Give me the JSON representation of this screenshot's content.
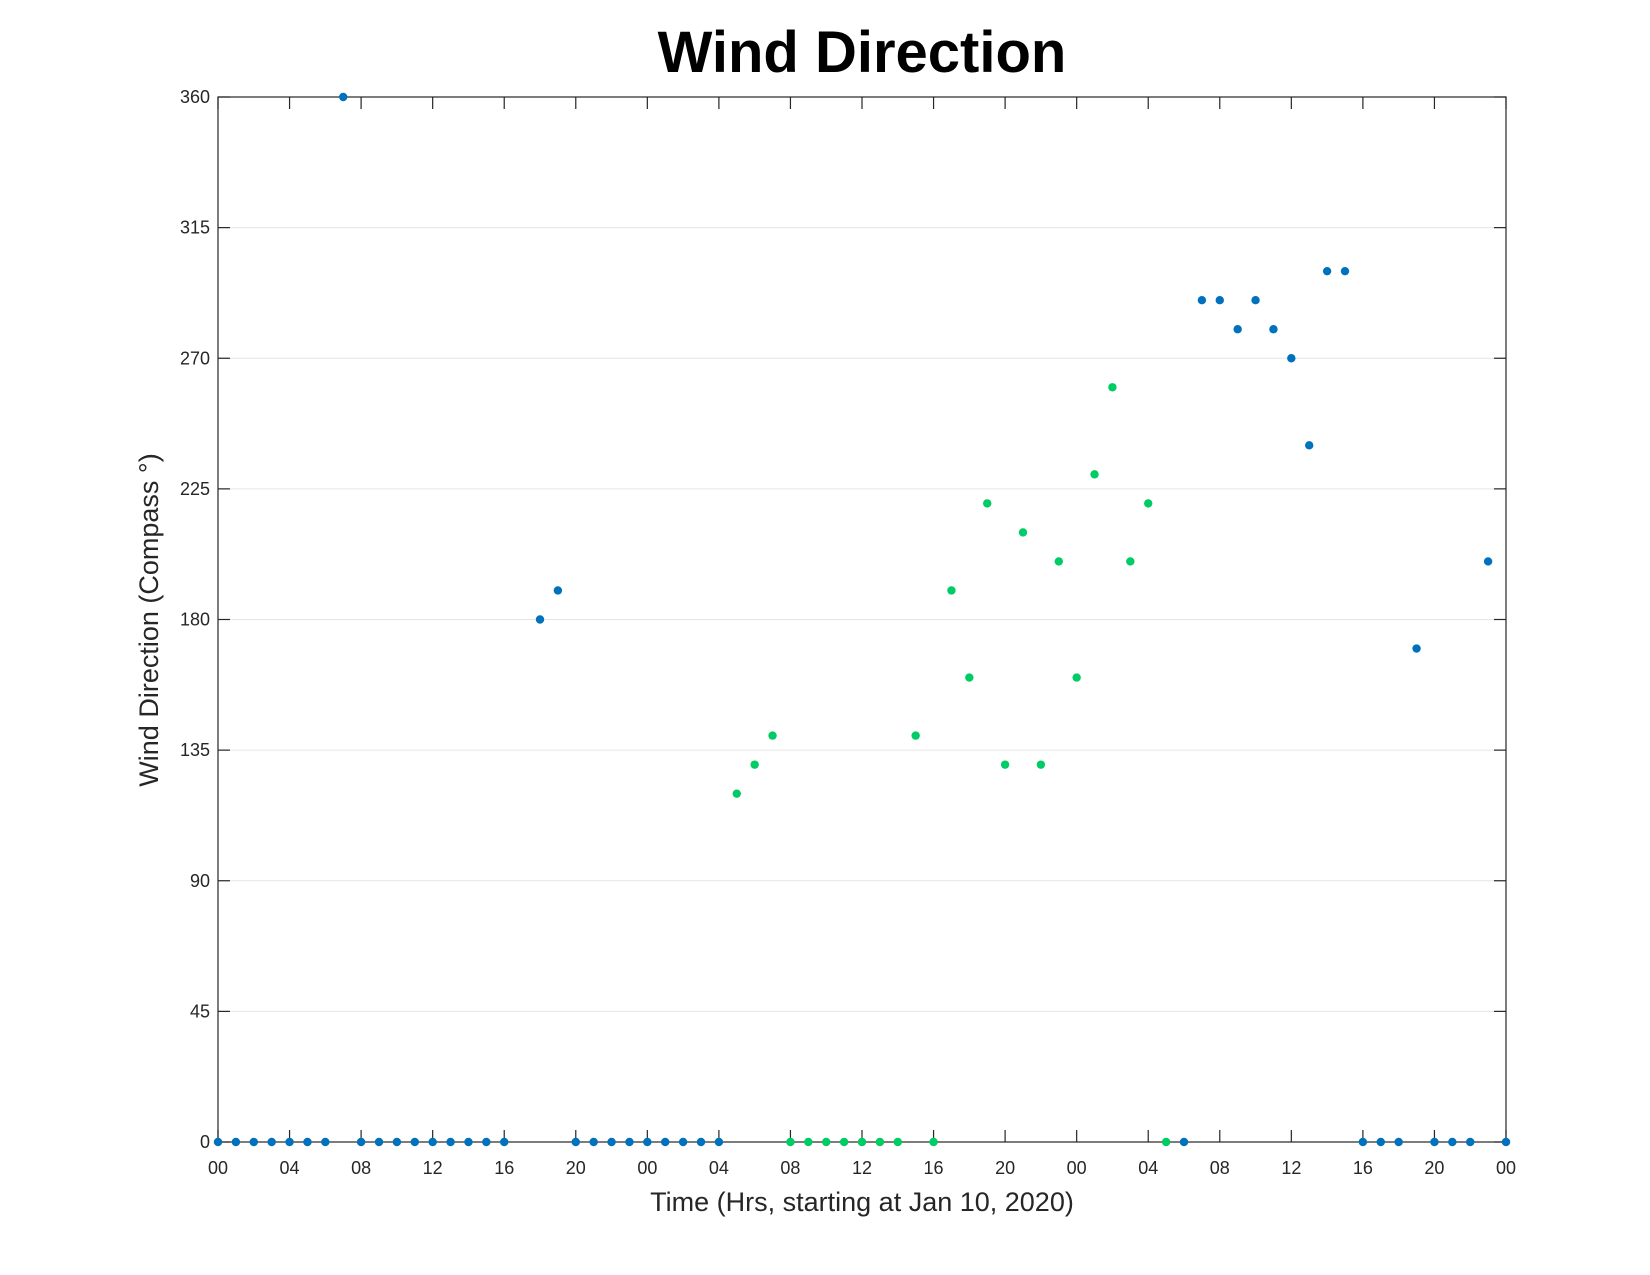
{
  "colors": {
    "blue": "#0072BD",
    "green": "#00CC66",
    "grid": "#e6e6e6",
    "axis": "#262626"
  },
  "chart_data": {
    "type": "scatter",
    "title": "Wind Direction",
    "xlabel": "Time (Hrs, starting at Jan 10, 2020)",
    "ylabel": "Wind Direction (Compass °)",
    "xlim": [
      "2020-01-10 00:00",
      "2020-01-13 00:00"
    ],
    "ylim": [
      0,
      360
    ],
    "grid": "y",
    "yticks": [
      0,
      45,
      90,
      135,
      180,
      225,
      270,
      315,
      360
    ],
    "xtick_labels": [
      "00",
      "04",
      "08",
      "12",
      "16",
      "20",
      "00",
      "04",
      "08",
      "12",
      "16",
      "20",
      "00",
      "04",
      "08",
      "12",
      "16",
      "20",
      "00"
    ],
    "series": [
      {
        "color": "#0072BD",
        "points": [
          [
            "2020-01-10 00:00",
            0
          ],
          [
            "2020-01-10 01:00",
            0
          ],
          [
            "2020-01-10 02:00",
            0
          ],
          [
            "2020-01-10 03:00",
            0
          ],
          [
            "2020-01-10 04:00",
            0
          ],
          [
            "2020-01-10 05:00",
            0
          ],
          [
            "2020-01-10 06:00",
            0
          ],
          [
            "2020-01-10 07:00",
            360
          ],
          [
            "2020-01-10 08:00",
            0
          ],
          [
            "2020-01-10 09:00",
            0
          ],
          [
            "2020-01-10 10:00",
            0
          ],
          [
            "2020-01-10 11:00",
            0
          ],
          [
            "2020-01-10 12:00",
            0
          ],
          [
            "2020-01-10 13:00",
            0
          ],
          [
            "2020-01-10 14:00",
            0
          ],
          [
            "2020-01-10 15:00",
            0
          ],
          [
            "2020-01-10 16:00",
            0
          ],
          [
            "2020-01-10 18:00",
            180
          ],
          [
            "2020-01-10 19:00",
            190
          ],
          [
            "2020-01-10 20:00",
            0
          ],
          [
            "2020-01-10 21:00",
            0
          ],
          [
            "2020-01-10 22:00",
            0
          ],
          [
            "2020-01-10 23:00",
            0
          ],
          [
            "2020-01-11 00:00",
            0
          ],
          [
            "2020-01-11 01:00",
            0
          ],
          [
            "2020-01-11 02:00",
            0
          ],
          [
            "2020-01-11 03:00",
            0
          ],
          [
            "2020-01-11 04:00",
            0
          ],
          [
            "2020-01-12 06:00",
            0
          ],
          [
            "2020-01-12 07:00",
            290
          ],
          [
            "2020-01-12 08:00",
            290
          ],
          [
            "2020-01-12 09:00",
            280
          ],
          [
            "2020-01-12 10:00",
            290
          ],
          [
            "2020-01-12 11:00",
            280
          ],
          [
            "2020-01-12 12:00",
            270
          ],
          [
            "2020-01-12 13:00",
            240
          ],
          [
            "2020-01-12 14:00",
            300
          ],
          [
            "2020-01-12 15:00",
            300
          ],
          [
            "2020-01-12 16:00",
            0
          ],
          [
            "2020-01-12 17:00",
            0
          ],
          [
            "2020-01-12 18:00",
            0
          ],
          [
            "2020-01-12 19:00",
            170
          ],
          [
            "2020-01-12 20:00",
            0
          ],
          [
            "2020-01-12 21:00",
            0
          ],
          [
            "2020-01-12 22:00",
            0
          ],
          [
            "2020-01-12 23:00",
            200
          ],
          [
            "2020-01-13 00:00",
            0
          ]
        ]
      },
      {
        "color": "#00CC66",
        "points": [
          [
            "2020-01-11 05:00",
            120
          ],
          [
            "2020-01-11 06:00",
            130
          ],
          [
            "2020-01-11 07:00",
            140
          ],
          [
            "2020-01-11 08:00",
            0
          ],
          [
            "2020-01-11 09:00",
            0
          ],
          [
            "2020-01-11 10:00",
            0
          ],
          [
            "2020-01-11 11:00",
            0
          ],
          [
            "2020-01-11 12:00",
            0
          ],
          [
            "2020-01-11 13:00",
            0
          ],
          [
            "2020-01-11 14:00",
            0
          ],
          [
            "2020-01-11 15:00",
            140
          ],
          [
            "2020-01-11 16:00",
            0
          ],
          [
            "2020-01-11 17:00",
            190
          ],
          [
            "2020-01-11 18:00",
            160
          ],
          [
            "2020-01-11 19:00",
            220
          ],
          [
            "2020-01-11 20:00",
            130
          ],
          [
            "2020-01-11 21:00",
            210
          ],
          [
            "2020-01-11 22:00",
            130
          ],
          [
            "2020-01-11 23:00",
            200
          ],
          [
            "2020-01-12 00:00",
            160
          ],
          [
            "2020-01-12 01:00",
            230
          ],
          [
            "2020-01-12 02:00",
            260
          ],
          [
            "2020-01-12 03:00",
            200
          ],
          [
            "2020-01-12 04:00",
            220
          ],
          [
            "2020-01-12 05:00",
            0
          ]
        ]
      }
    ]
  }
}
